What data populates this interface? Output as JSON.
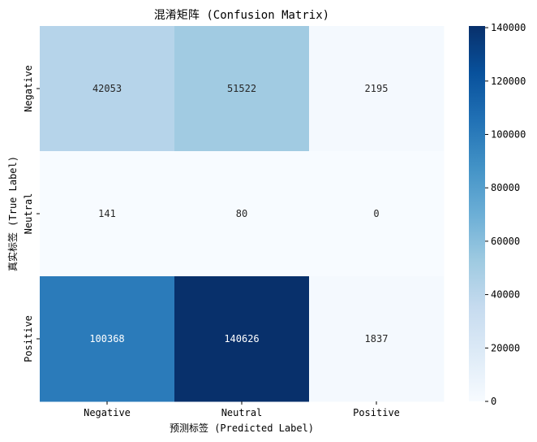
{
  "chart_data": {
    "type": "heatmap",
    "title": "混淆矩阵 (Confusion Matrix)",
    "xlabel": "预测标签 (Predicted Label)",
    "ylabel": "真实标签 (True Label)",
    "x_categories": [
      "Negative",
      "Neutral",
      "Positive"
    ],
    "y_categories": [
      "Negative",
      "Neutral",
      "Positive"
    ],
    "values": [
      [
        42053,
        51522,
        2195
      ],
      [
        141,
        80,
        0
      ],
      [
        100368,
        140626,
        1837
      ]
    ],
    "colormap": "Blues",
    "colorbar": {
      "range": [
        0,
        140626
      ],
      "ticks": [
        "0",
        "20000",
        "40000",
        "60000",
        "80000",
        "100000",
        "120000",
        "140000"
      ]
    }
  }
}
